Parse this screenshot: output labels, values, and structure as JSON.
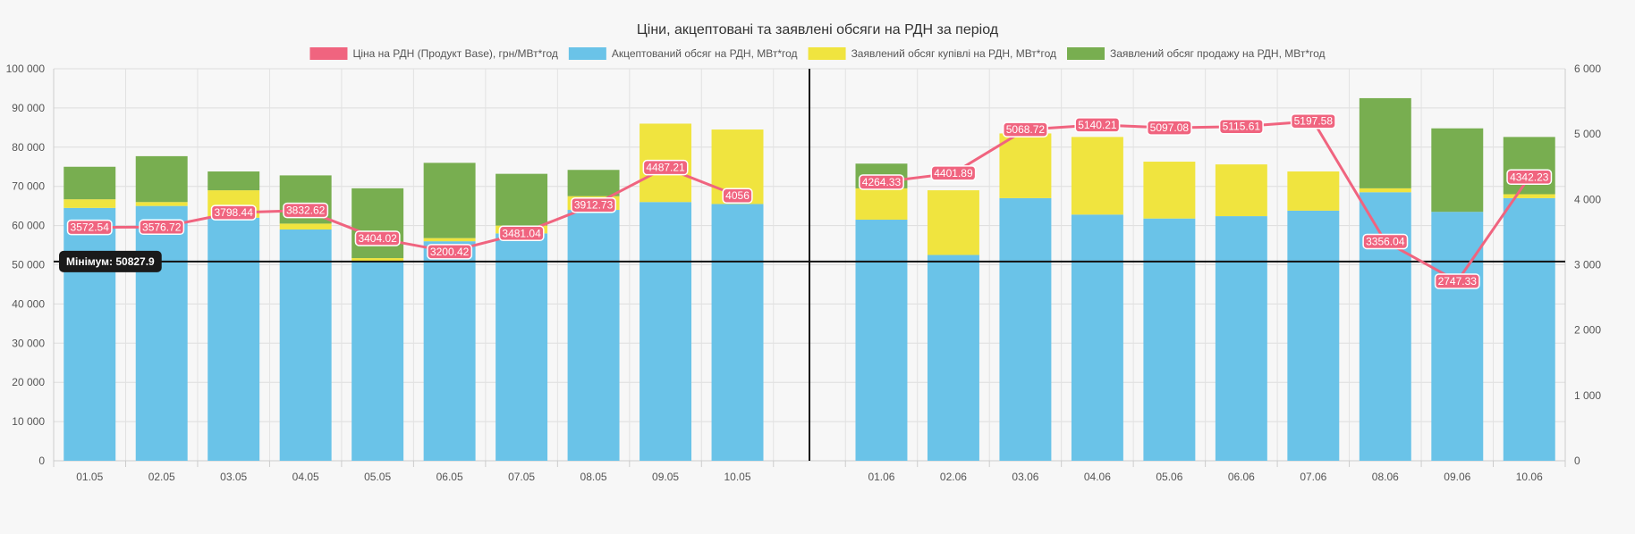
{
  "chart_data": {
    "type": "bar",
    "title": "Ціни, акцептовані та заявлені обсяги на РДН за період",
    "categories": [
      "01.05",
      "02.05",
      "03.05",
      "04.05",
      "05.05",
      "06.05",
      "07.05",
      "08.05",
      "09.05",
      "10.05",
      "",
      "01.06",
      "02.06",
      "03.06",
      "04.06",
      "05.06",
      "06.06",
      "07.06",
      "08.06",
      "09.06",
      "10.06"
    ],
    "legend_position": "top",
    "grid": true,
    "y_left": {
      "min": 0,
      "max": 100000,
      "ticks": [
        "0",
        "10 000",
        "20 000",
        "30 000",
        "40 000",
        "50 000",
        "60 000",
        "70 000",
        "80 000",
        "90 000",
        "100 000"
      ]
    },
    "y_right": {
      "min": 0,
      "max": 6000,
      "ticks": [
        "0",
        "1 000",
        "2 000",
        "3 000",
        "4 000",
        "5 000",
        "6 000"
      ]
    },
    "series": [
      {
        "name": "Ціна на РДН (Продукт Base), грн/МВт*год",
        "type": "line",
        "axis": "right",
        "color": "#f0647f",
        "values": [
          3572.54,
          3576.72,
          3798.44,
          3832.62,
          3404.02,
          3200.42,
          3481.04,
          3912.73,
          4487.21,
          4056,
          null,
          4264.33,
          4401.89,
          5068.72,
          5140.21,
          5097.08,
          5115.61,
          5197.58,
          3356.04,
          2747.33,
          4342.23
        ],
        "labels": [
          "3572.54",
          "3576.72",
          "3798.44",
          "3832.62",
          "3404.02",
          "3200.42",
          "3481.04",
          "3912.73",
          "4487.21",
          "4056",
          "",
          "4264.33",
          "4401.89",
          "5068.72",
          "5140.21",
          "5097.08",
          "5115.61",
          "5197.58",
          "3356.04",
          "2747.33",
          "4342.23"
        ]
      },
      {
        "name": "Акцептований обсяг на РДН, МВт*год",
        "type": "bar",
        "axis": "left",
        "color": "#6ac3e8",
        "values": [
          64500,
          65000,
          62000,
          59000,
          51000,
          56000,
          58000,
          64000,
          66000,
          65500,
          null,
          61500,
          52500,
          67000,
          62800,
          61800,
          62400,
          63800,
          68500,
          63500,
          67000
        ]
      },
      {
        "name": "Заявлений обсяг купівлі на РДН, МВт*год",
        "type": "bar",
        "axis": "left",
        "color": "#f0e43f",
        "values": [
          2200,
          1000,
          7000,
          1500,
          700,
          800,
          2000,
          3500,
          20000,
          19000,
          null,
          8000,
          16500,
          16500,
          19800,
          14500,
          13200,
          10000,
          1000,
          0,
          1000
        ]
      },
      {
        "name": "Заявлений обсяг продажу на РДН, МВт*год",
        "type": "bar",
        "axis": "left",
        "color": "#78ae50",
        "values": [
          8300,
          11700,
          4800,
          12300,
          17800,
          19200,
          13200,
          6700,
          0,
          0,
          null,
          6300,
          0,
          0,
          0,
          0,
          0,
          0,
          23000,
          21300,
          14600
        ]
      }
    ],
    "annotations": {
      "horizontal_line": {
        "value": 50827.9,
        "label": "Мінімум: 50827.9"
      },
      "vertical_divider_category_index": 10
    }
  }
}
